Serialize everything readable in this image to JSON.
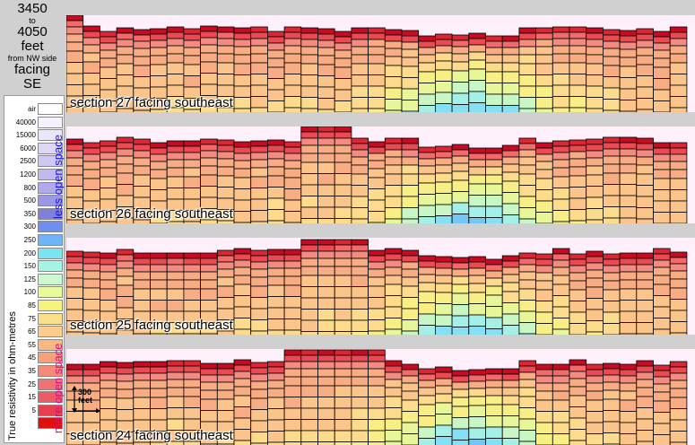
{
  "title": {
    "line1": "3450",
    "line2": "to",
    "line3": "4050",
    "line4": "feet",
    "line5": "from NW side",
    "line6": "facing",
    "line7": "SE"
  },
  "legend": {
    "items": [
      {
        "label": "air",
        "color": "#ffffff"
      },
      {
        "label": "40000",
        "color": "#f7f0ff"
      },
      {
        "label": "15000",
        "color": "#ece6fc"
      },
      {
        "label": "6000",
        "color": "#ddd6f8"
      },
      {
        "label": "2500",
        "color": "#cfc8f4"
      },
      {
        "label": "1200",
        "color": "#c0baf0"
      },
      {
        "label": "800",
        "color": "#b0aaec"
      },
      {
        "label": "500",
        "color": "#9a98e6"
      },
      {
        "label": "350",
        "color": "#8080d8"
      },
      {
        "label": "300",
        "color": "#6f8ef0"
      },
      {
        "label": "250",
        "color": "#6fb4f4"
      },
      {
        "label": "200",
        "color": "#7ae4f0"
      },
      {
        "label": "150",
        "color": "#a4f4e6"
      },
      {
        "label": "125",
        "color": "#ccf8d0"
      },
      {
        "label": "100",
        "color": "#e8fa9c"
      },
      {
        "label": "85",
        "color": "#f6f27a"
      },
      {
        "label": "75",
        "color": "#fae08a"
      },
      {
        "label": "65",
        "color": "#fccc8a"
      },
      {
        "label": "55",
        "color": "#fab880"
      },
      {
        "label": "45",
        "color": "#f8a07a"
      },
      {
        "label": "35",
        "color": "#f68a78"
      },
      {
        "label": "25",
        "color": "#f27272"
      },
      {
        "label": "15",
        "color": "#ee5a66"
      },
      {
        "label": "5",
        "color": "#e6404e"
      },
      {
        "label": "",
        "color": "#e01010"
      }
    ],
    "less_label": "less open space",
    "more_label": "more open space",
    "less_color": "#1a1ad0",
    "more_color": "#d0108a",
    "axis_label": "True resistivity in ohm-metres"
  },
  "scale_bar": {
    "line1": "300",
    "line2": "feet"
  },
  "sections": [
    {
      "label": "section 27  facing southeast",
      "seed": 27
    },
    {
      "label": "section 26  facing southeast",
      "seed": 26
    },
    {
      "label": "section 25  facing southeast",
      "seed": 25
    },
    {
      "label": "section 24  facing southeast",
      "seed": 24
    }
  ],
  "palette": [
    "#c80a22",
    "#dd2634",
    "#ea4a52",
    "#f26a6a",
    "#f38c80",
    "#f8ac84",
    "#fbc48a",
    "#fcdc8c",
    "#f8ee86",
    "#e8f69a",
    "#c8f6c4",
    "#a4f0e6",
    "#86e0f4",
    "#74c6f4",
    "#78a4ec"
  ]
}
